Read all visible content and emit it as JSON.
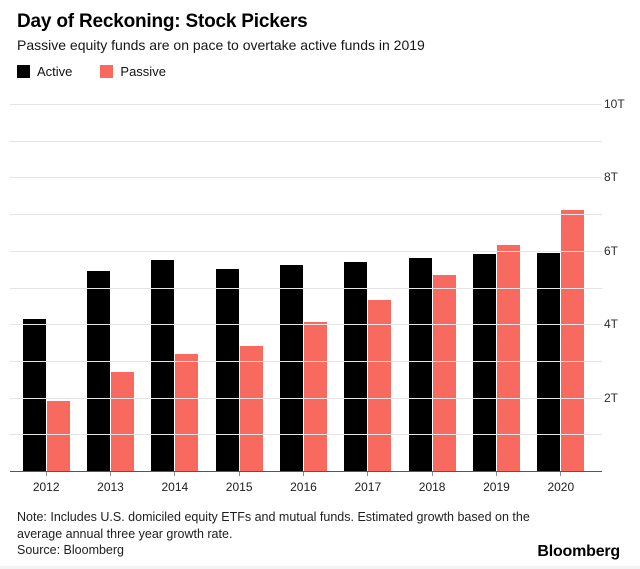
{
  "header": {
    "title": "Day of Reckoning: Stock Pickers",
    "subtitle": "Passive equity funds are on pace to overtake active funds in 2019"
  },
  "legend": {
    "items": [
      {
        "label": "Active",
        "color": "#000000"
      },
      {
        "label": "Passive",
        "color": "#f8695f"
      }
    ]
  },
  "chart_data": {
    "type": "bar",
    "title": "Day of Reckoning: Stock Pickers",
    "subtitle": "Passive equity funds are on pace to overtake active funds in 2019",
    "categories": [
      "2012",
      "2013",
      "2014",
      "2015",
      "2016",
      "2017",
      "2018",
      "2019",
      "2020"
    ],
    "series": [
      {
        "name": "Active",
        "color": "#000000",
        "values": [
          4.15,
          5.45,
          5.75,
          5.5,
          5.6,
          5.7,
          5.8,
          5.9,
          5.95
        ]
      },
      {
        "name": "Passive",
        "color": "#f8695f",
        "values": [
          1.9,
          2.7,
          3.2,
          3.4,
          4.05,
          4.65,
          5.35,
          6.15,
          7.1
        ]
      }
    ],
    "unit_suffix": "T",
    "ylim": [
      0,
      10
    ],
    "y_gridline_interval": 1,
    "y_ticks": [
      {
        "value": 2,
        "label": "2T"
      },
      {
        "value": 4,
        "label": "4T"
      },
      {
        "value": 6,
        "label": "6T"
      },
      {
        "value": 8,
        "label": "8T"
      },
      {
        "value": 10,
        "label": "10T"
      }
    ],
    "grid": "horizontal",
    "legend_position": "top-left",
    "y_axis_side": "right"
  },
  "footer": {
    "note": "Note: Includes U.S. domiciled equity ETFs and mutual funds. Estimated growth based on the average annual three year growth rate.",
    "source": "Source: Bloomberg",
    "brand": "Bloomberg"
  }
}
